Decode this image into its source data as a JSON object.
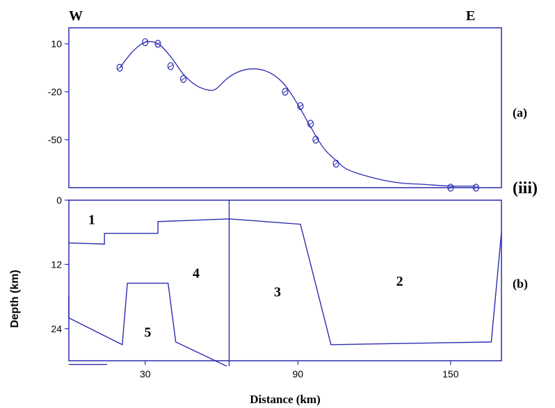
{
  "figure": {
    "west_label": "W",
    "east_label": "E",
    "panel_a_label": "(a)",
    "panel_b_label": "(b)",
    "section_label": "(iii)",
    "xlabel": "Distance (km)",
    "ylabel": "Depth (km)",
    "line_color": "#2b2bb0",
    "frame_color": "#2b2bb0"
  },
  "chart_data": [
    {
      "type": "line",
      "panel": "(a)",
      "xlim": [
        0,
        170
      ],
      "ylim": [
        -80,
        20
      ],
      "y_ticks": [
        "10",
        "-20",
        "-50"
      ],
      "y_tick_values": [
        10,
        -20,
        -50
      ],
      "series": [
        {
          "kind": "curve",
          "x": [
            20,
            25,
            30,
            35,
            40,
            45,
            50,
            55,
            58,
            62,
            66,
            70,
            75,
            80,
            85,
            90,
            95,
            100,
            105,
            110,
            120,
            130,
            140,
            150,
            160
          ],
          "y": [
            -5,
            5,
            11,
            10,
            2,
            -9,
            -16,
            -19,
            -18,
            -12,
            -8,
            -6,
            -6,
            -9,
            -16,
            -28,
            -42,
            -55,
            -63,
            -69,
            -74,
            -77,
            -78,
            -79,
            -79
          ]
        },
        {
          "kind": "observed-points",
          "x": [
            20,
            30,
            35,
            40,
            45,
            85,
            91,
            95,
            97,
            105,
            150,
            160
          ],
          "y": [
            -5,
            11,
            10,
            -4,
            -12,
            -20,
            -29,
            -40,
            -50,
            -65,
            -80,
            -80
          ]
        }
      ]
    },
    {
      "type": "area",
      "panel": "(b)",
      "xlim": [
        0,
        170
      ],
      "ylim": [
        0,
        30
      ],
      "x_ticks": [
        "30",
        "90",
        "150"
      ],
      "x_tick_values": [
        30,
        90,
        150
      ],
      "y_ticks": [
        "0",
        "12",
        "24"
      ],
      "y_tick_values": [
        0,
        12,
        24
      ],
      "body_labels": [
        {
          "text": "1",
          "x": 9,
          "y": 4.5
        },
        {
          "text": "2",
          "x": 130,
          "y": 16
        },
        {
          "text": "3",
          "x": 82,
          "y": 18
        },
        {
          "text": "4",
          "x": 50,
          "y": 14.5
        },
        {
          "text": "5",
          "x": 31,
          "y": 25.5
        }
      ],
      "boundaries": [
        {
          "x": [
            0,
            14,
            14,
            35,
            35,
            63,
            91,
            103,
            166,
            170
          ],
          "y": [
            8,
            8.2,
            6.2,
            6.2,
            4,
            3.5,
            4.5,
            27,
            26.5,
            6
          ]
        },
        {
          "x": [
            0,
            0
          ],
          "y": [
            18,
            22
          ]
        },
        {
          "x": [
            0,
            21,
            23,
            39,
            42,
            62
          ],
          "y": [
            22,
            27,
            15.5,
            15.5,
            26.5,
            31
          ]
        },
        {
          "x": [
            63,
            63
          ],
          "y": [
            0,
            31
          ]
        },
        {
          "x": [
            0,
            15
          ],
          "y": [
            30.7,
            30.7
          ]
        }
      ]
    }
  ]
}
